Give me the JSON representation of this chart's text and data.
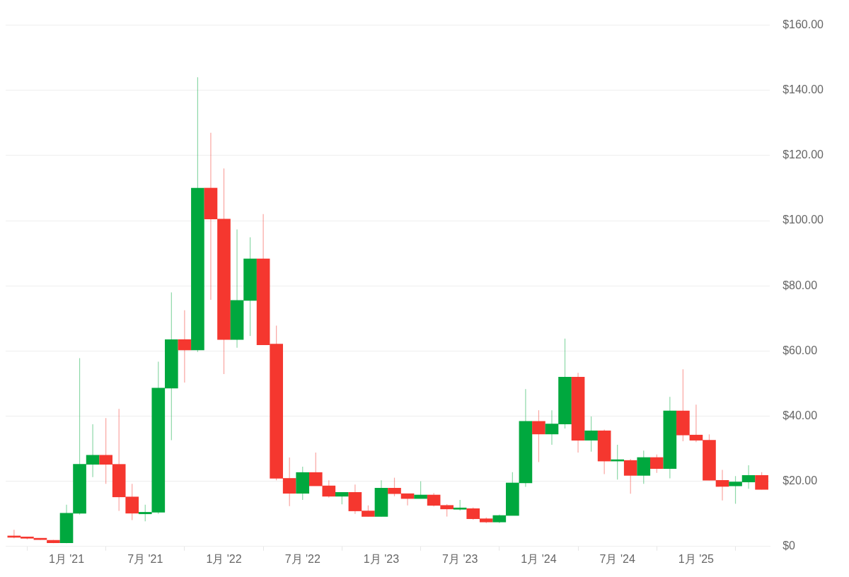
{
  "chart_data": {
    "type": "candlestick",
    "x": [
      "2020-09",
      "2020-10",
      "2020-11",
      "2020-12",
      "2021-01",
      "2021-02",
      "2021-03",
      "2021-04",
      "2021-05",
      "2021-06",
      "2021-07",
      "2021-08",
      "2021-09",
      "2021-10",
      "2021-11",
      "2021-12",
      "2022-01",
      "2022-02",
      "2022-03",
      "2022-04",
      "2022-05",
      "2022-06",
      "2022-07",
      "2022-08",
      "2022-09",
      "2022-10",
      "2022-11",
      "2022-12",
      "2023-01",
      "2023-02",
      "2023-03",
      "2023-04",
      "2023-05",
      "2023-06",
      "2023-07",
      "2023-08",
      "2023-09",
      "2023-10",
      "2023-11",
      "2023-12",
      "2024-01",
      "2024-02",
      "2024-03",
      "2024-04",
      "2024-05",
      "2024-06",
      "2024-07",
      "2024-08",
      "2024-09",
      "2024-10",
      "2024-11",
      "2024-12",
      "2025-01",
      "2025-02",
      "2025-03",
      "2025-04",
      "2025-05",
      "2025-06"
    ],
    "ohlc": [
      [
        3.0,
        5.1,
        2.5,
        2.8
      ],
      [
        2.8,
        3.0,
        2.2,
        2.5
      ],
      [
        2.3,
        2.5,
        2.0,
        2.1
      ],
      [
        1.9,
        2.0,
        1.0,
        1.1
      ],
      [
        1.1,
        12.8,
        1.0,
        10.2
      ],
      [
        10.2,
        57.8,
        9.8,
        25.2
      ],
      [
        25.2,
        37.5,
        21.3,
        28.0
      ],
      [
        28.0,
        39.4,
        19.2,
        25.2
      ],
      [
        25.2,
        42.2,
        10.9,
        15.2
      ],
      [
        15.2,
        19.2,
        8.1,
        10.2
      ],
      [
        10.0,
        12.8,
        7.7,
        10.5
      ],
      [
        10.5,
        56.7,
        10.0,
        48.6
      ],
      [
        48.6,
        78.0,
        32.6,
        63.5
      ],
      [
        63.5,
        72.5,
        50.3,
        60.3
      ],
      [
        60.3,
        144.0,
        59.7,
        110.0
      ],
      [
        110.0,
        127.0,
        75.7,
        100.5
      ],
      [
        100.5,
        116.0,
        52.9,
        63.5
      ],
      [
        63.5,
        97.3,
        61.0,
        75.5
      ],
      [
        75.5,
        94.9,
        64.6,
        88.3
      ],
      [
        88.3,
        102.0,
        61.9,
        61.9
      ],
      [
        62.1,
        67.8,
        20.3,
        20.9
      ],
      [
        20.9,
        27.3,
        12.4,
        16.3
      ],
      [
        16.3,
        24.5,
        14.3,
        22.7
      ],
      [
        22.7,
        28.8,
        18.6,
        18.6
      ],
      [
        18.6,
        20.3,
        15.0,
        15.4
      ],
      [
        15.4,
        16.6,
        12.9,
        16.6
      ],
      [
        16.6,
        19.0,
        10.0,
        10.9
      ],
      [
        10.9,
        12.6,
        9.2,
        9.2
      ],
      [
        9.2,
        20.3,
        9.2,
        17.9
      ],
      [
        17.9,
        21.1,
        15.4,
        16.2
      ],
      [
        16.2,
        16.2,
        12.6,
        14.7
      ],
      [
        14.7,
        20.0,
        14.7,
        15.8
      ],
      [
        15.8,
        16.4,
        12.3,
        12.6
      ],
      [
        12.6,
        13.0,
        9.2,
        11.5
      ],
      [
        11.4,
        14.3,
        11.0,
        11.6
      ],
      [
        11.6,
        12.0,
        8.2,
        8.5
      ],
      [
        8.5,
        8.9,
        7.2,
        7.5
      ],
      [
        7.5,
        9.8,
        7.2,
        9.5
      ],
      [
        9.5,
        22.8,
        9.5,
        19.5
      ],
      [
        19.5,
        48.3,
        18.3,
        38.4
      ],
      [
        38.4,
        41.8,
        25.9,
        34.5
      ],
      [
        34.5,
        41.8,
        31.2,
        37.6
      ],
      [
        37.6,
        63.8,
        36.2,
        52.0
      ],
      [
        52.0,
        53.3,
        28.8,
        32.6
      ],
      [
        32.6,
        39.9,
        29.1,
        35.5
      ],
      [
        35.5,
        35.9,
        22.2,
        26.2
      ],
      [
        26.2,
        31.2,
        20.5,
        26.4
      ],
      [
        26.4,
        26.8,
        16.2,
        21.8
      ],
      [
        21.8,
        29.4,
        19.2,
        27.3
      ],
      [
        27.3,
        28.2,
        22.6,
        23.9
      ],
      [
        23.9,
        45.9,
        20.9,
        41.6
      ],
      [
        41.6,
        54.4,
        32.3,
        34.2
      ],
      [
        34.2,
        43.5,
        32.0,
        32.6
      ],
      [
        32.6,
        34.4,
        20.3,
        20.3
      ],
      [
        20.3,
        23.5,
        14.1,
        18.4
      ],
      [
        18.6,
        21.6,
        13.1,
        19.8
      ],
      [
        19.8,
        24.9,
        17.7,
        21.8
      ],
      [
        21.8,
        22.8,
        17.5,
        17.5
      ]
    ],
    "colors": [
      "#f5372f",
      "#f5372f",
      "#f5372f",
      "#f5372f",
      "#00a83e",
      "#00a83e",
      "#00a83e",
      "#f5372f",
      "#f5372f",
      "#f5372f",
      "#00a83e",
      "#00a83e",
      "#00a83e",
      "#f5372f",
      "#00a83e",
      "#f5372f",
      "#f5372f",
      "#00a83e",
      "#00a83e",
      "#f5372f",
      "#f5372f",
      "#f5372f",
      "#00a83e",
      "#f5372f",
      "#f5372f",
      "#00a83e",
      "#f5372f",
      "#f5372f",
      "#00a83e",
      "#f5372f",
      "#f5372f",
      "#00a83e",
      "#f5372f",
      "#f5372f",
      "#00a83e",
      "#f5372f",
      "#f5372f",
      "#00a83e",
      "#00a83e",
      "#00a83e",
      "#f5372f",
      "#00a83e",
      "#00a83e",
      "#f5372f",
      "#00a83e",
      "#f5372f",
      "#00a83e",
      "#f5372f",
      "#00a83e",
      "#f5372f",
      "#00a83e",
      "#f5372f",
      "#f5372f",
      "#f5372f",
      "#f5372f",
      "#00a83e",
      "#00a83e",
      "#f5372f"
    ],
    "xlim": [
      "2020-08-12",
      "2025-06-20"
    ],
    "xticks": [
      {
        "value": "2021-01",
        "label": "1月 '21"
      },
      {
        "value": "2021-07",
        "label": "7月 '21"
      },
      {
        "value": "2022-01",
        "label": "1月 '22"
      },
      {
        "value": "2022-07",
        "label": "7月 '22"
      },
      {
        "value": "2023-01",
        "label": "1月 '23"
      },
      {
        "value": "2023-07",
        "label": "7月 '23"
      },
      {
        "value": "2024-01",
        "label": "1月 '24"
      },
      {
        "value": "2024-07",
        "label": "7月 '24"
      },
      {
        "value": "2025-01",
        "label": "1月 '25"
      }
    ],
    "ylim": [
      0,
      160
    ],
    "yticks": [
      {
        "value": 0,
        "label": "$0"
      },
      {
        "value": 20,
        "label": "$20.00"
      },
      {
        "value": 40,
        "label": "$40.00"
      },
      {
        "value": 60,
        "label": "$60.00"
      },
      {
        "value": 80,
        "label": "$80.00"
      },
      {
        "value": 100,
        "label": "$100.00"
      },
      {
        "value": 120,
        "label": "$120.00"
      },
      {
        "value": 140,
        "label": "$140.00"
      },
      {
        "value": 160,
        "label": "$160.00"
      }
    ],
    "grid": "y"
  }
}
